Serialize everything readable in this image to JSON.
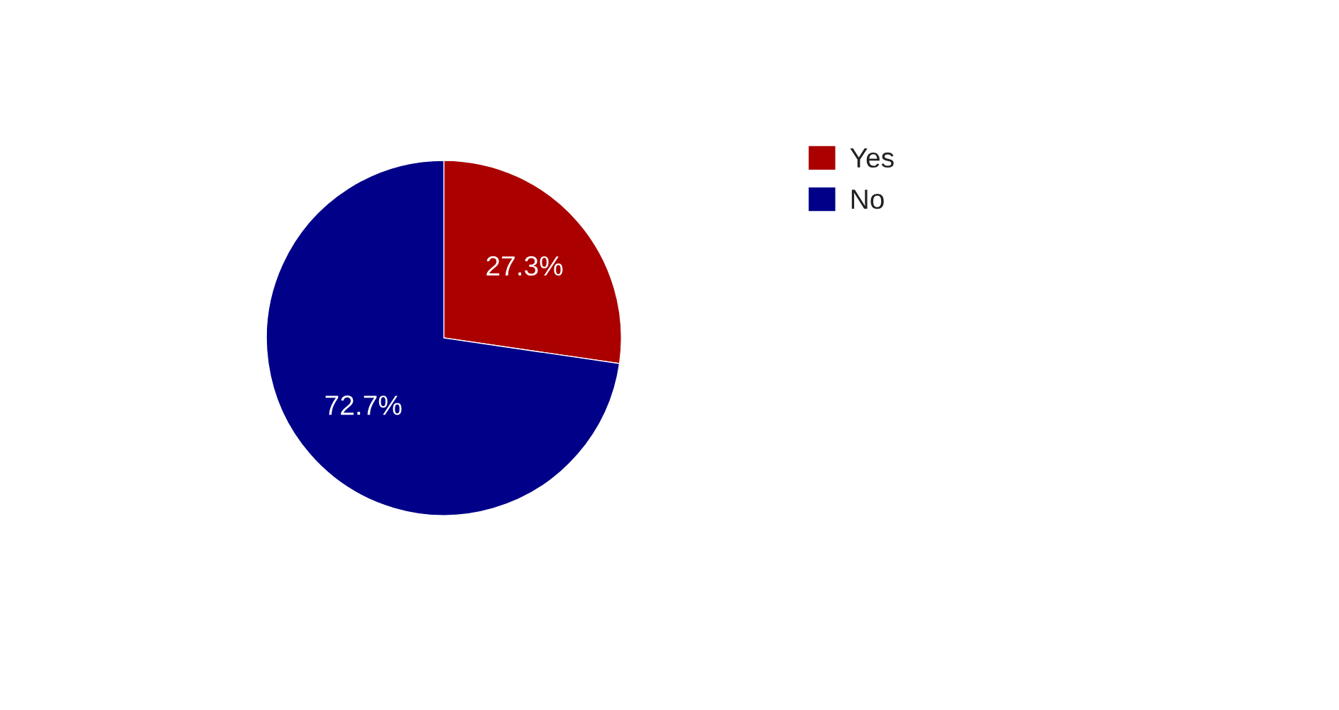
{
  "chart_data": {
    "type": "pie",
    "categories": [
      "Yes",
      "No"
    ],
    "values": [
      27.3,
      72.7
    ],
    "colors": [
      "#aa0000",
      "#000088"
    ],
    "value_labels": [
      "27.3%",
      "72.7%"
    ],
    "legend": "right"
  }
}
